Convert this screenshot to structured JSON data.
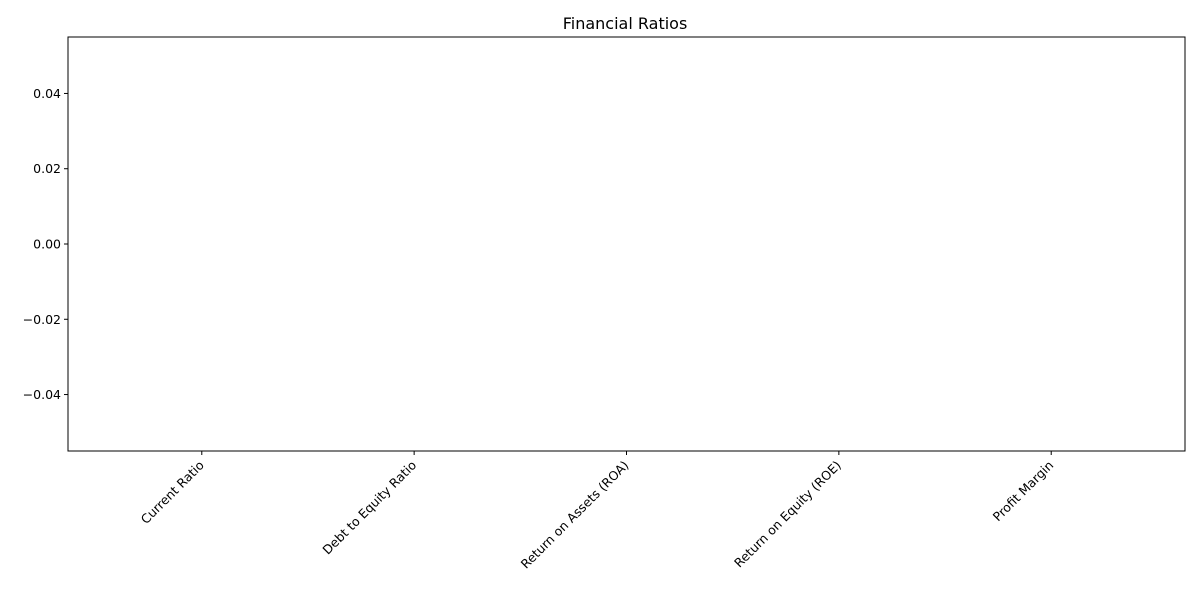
{
  "chart_data": {
    "type": "bar",
    "title": "Financial Ratios",
    "xlabel": "",
    "ylabel": "",
    "categories": [
      "Current Ratio",
      "Debt to Equity Ratio",
      "Return on Assets (ROA)",
      "Return on Equity (ROE)",
      "Profit Margin"
    ],
    "values": [
      0,
      0,
      0,
      0,
      0
    ],
    "ylim": [
      -0.055,
      0.055
    ],
    "yticks": [
      "0.04",
      "0.02",
      "0.00",
      "−0.02",
      "−0.04"
    ],
    "ytick_values": [
      0.04,
      0.02,
      0.0,
      -0.02,
      -0.04
    ],
    "grid": false,
    "legend": "none"
  }
}
